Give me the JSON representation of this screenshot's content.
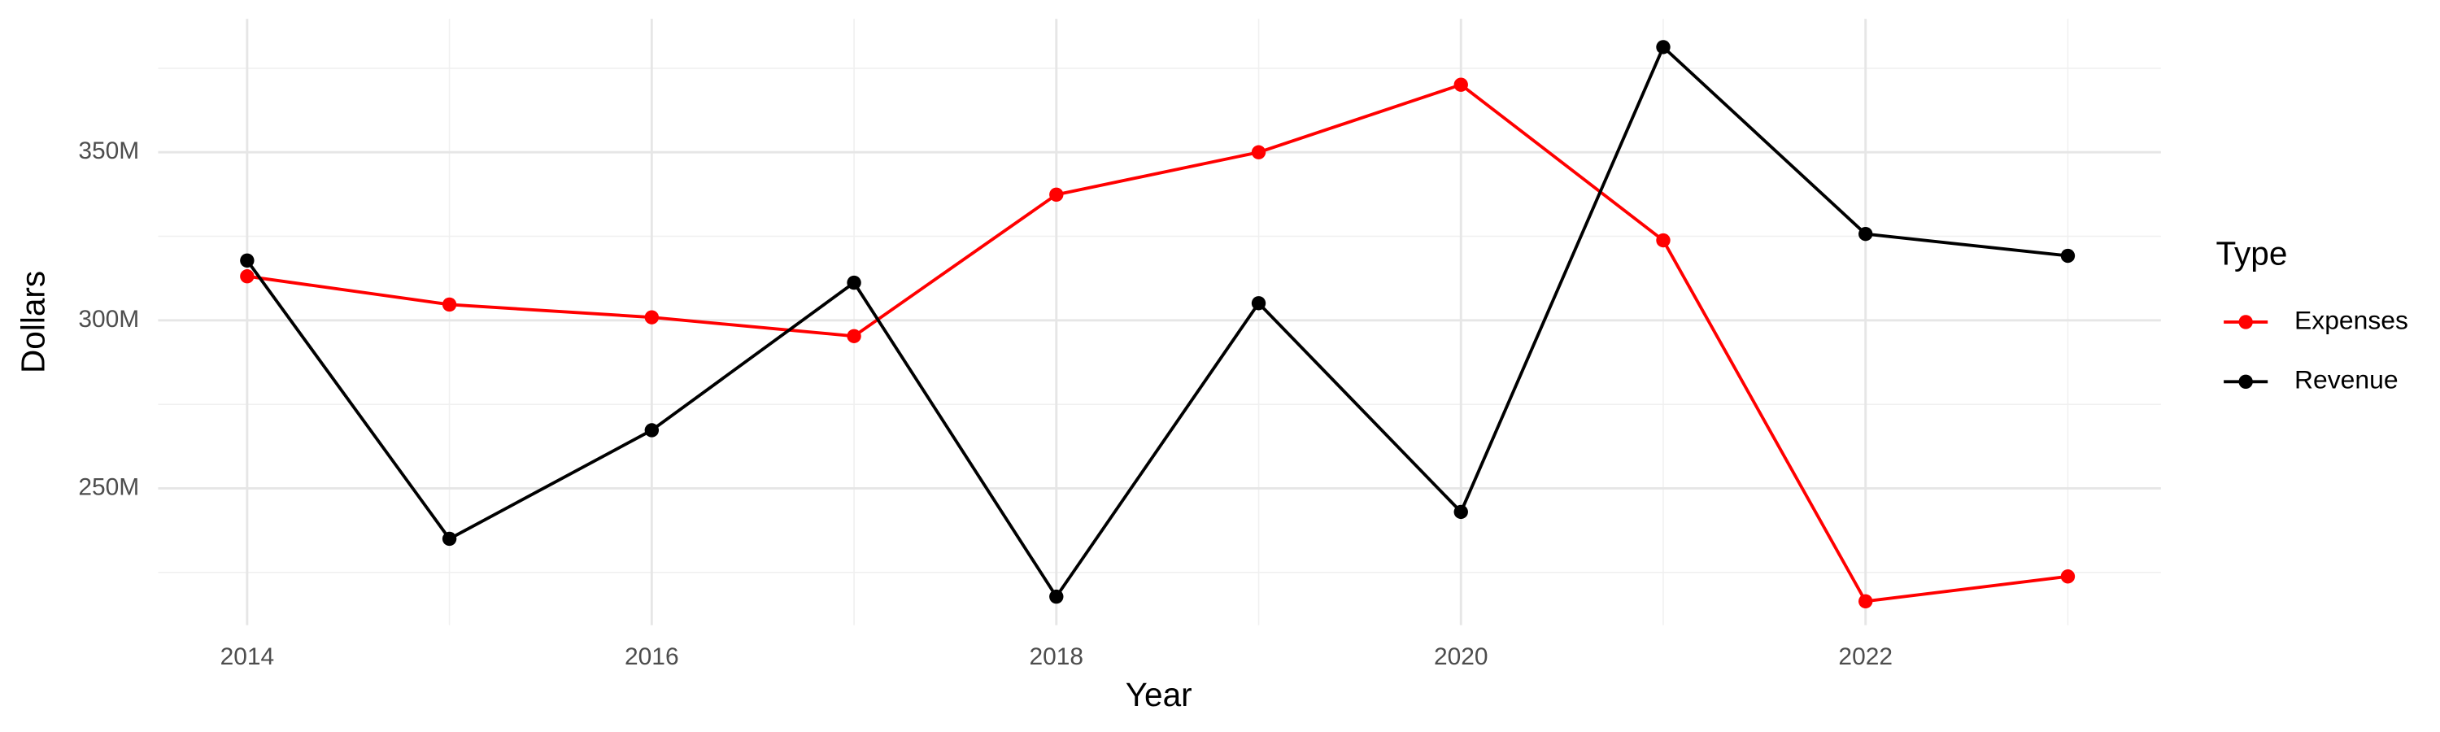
{
  "chart_data": {
    "type": "line",
    "x_label": "Year",
    "y_label": "Dollars",
    "legend_title": "Type",
    "legend_position": "right",
    "grid": true,
    "x": [
      2014,
      2015,
      2016,
      2017,
      2018,
      2019,
      2020,
      2021,
      2022,
      2023
    ],
    "series": [
      {
        "name": "Expenses",
        "color": "#ff0000",
        "values": [
          313100000,
          304700000,
          300900000,
          295300000,
          337400000,
          350000000,
          370100000,
          323800000,
          216400000,
          223800000
        ]
      },
      {
        "name": "Revenue",
        "color": "#000000",
        "values": [
          317800000,
          235000000,
          267300000,
          311200000,
          217800000,
          305100000,
          243000000,
          381300000,
          325700000,
          319200000
        ]
      }
    ],
    "xlim": [
      2013.56,
      2023.46
    ],
    "xticks": [
      2014,
      2016,
      2018,
      2020,
      2022
    ],
    "ylim": [
      209300000,
      389700000
    ],
    "yticks": [
      {
        "value": 250000000,
        "label": "250M"
      },
      {
        "value": 300000000,
        "label": "300M"
      },
      {
        "value": 350000000,
        "label": "350M"
      }
    ]
  }
}
